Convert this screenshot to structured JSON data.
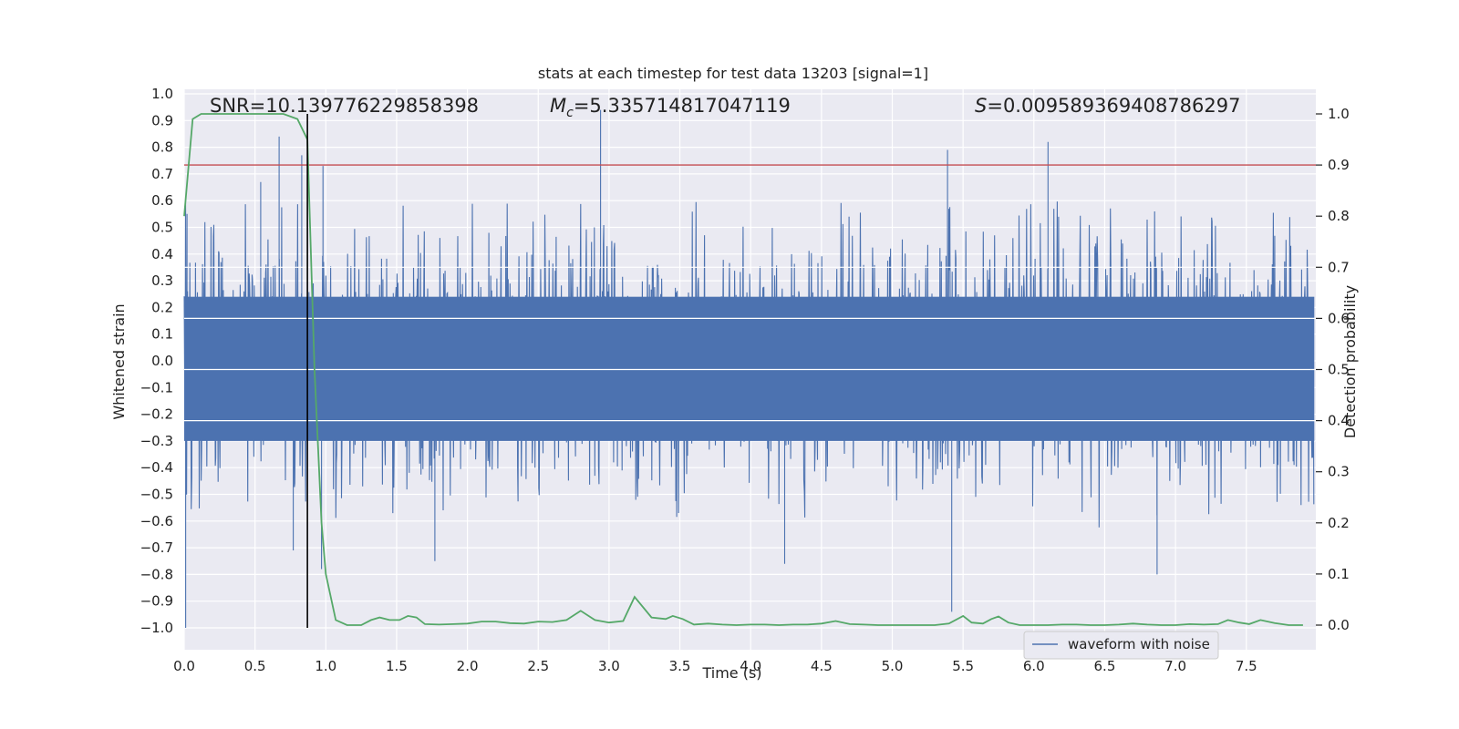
{
  "chart_data": {
    "type": "line",
    "title": "stats at each timestep for test data 13203 [signal=1]",
    "xlabel": "Time (s)",
    "ylabel": "Whitened strain",
    "y2label": "Detection probability",
    "xlim": [
      0.0,
      8.0
    ],
    "ylim": [
      -1.09,
      1.05
    ],
    "y2lim": [
      -0.05,
      1.03
    ],
    "x_ticks": [
      "0.0",
      "0.5",
      "1.0",
      "1.5",
      "2.0",
      "2.5",
      "3.0",
      "3.5",
      "4.0",
      "4.5",
      "5.0",
      "5.5",
      "6.0",
      "6.5",
      "7.0",
      "7.5"
    ],
    "x_tick_values": [
      0.0,
      0.5,
      1.0,
      1.5,
      2.0,
      2.5,
      3.0,
      3.5,
      4.0,
      4.5,
      5.0,
      5.5,
      6.0,
      6.5,
      7.0,
      7.5
    ],
    "y_ticks": [
      "1.0",
      "0.9",
      "0.8",
      "0.7",
      "0.6",
      "0.5",
      "0.4",
      "0.3",
      "0.2",
      "0.1",
      "0.0",
      "−0.1",
      "−0.2",
      "−0.3",
      "−0.4",
      "−0.5",
      "−0.6",
      "−0.7",
      "−0.8",
      "−0.9",
      "−1.0"
    ],
    "y_tick_values": [
      1.0,
      0.9,
      0.8,
      0.7,
      0.6,
      0.5,
      0.4,
      0.3,
      0.2,
      0.1,
      0.0,
      -0.1,
      -0.2,
      -0.3,
      -0.4,
      -0.5,
      -0.6,
      -0.7,
      -0.8,
      -0.9,
      -1.0
    ],
    "y2_ticks": [
      "1.0",
      "0.9",
      "0.8",
      "0.7",
      "0.6",
      "0.5",
      "0.4",
      "0.3",
      "0.2",
      "0.1",
      "0.0"
    ],
    "y2_tick_values": [
      1.0,
      0.9,
      0.8,
      0.7,
      0.6,
      0.5,
      0.4,
      0.3,
      0.2,
      0.1,
      0.0
    ],
    "stats": {
      "snr": "SNR=10.139776229858398",
      "mc_symbol": "M",
      "mc_sub": "c",
      "mc_value": "=5.335714817047119",
      "s_symbol": "S",
      "s_value": "=0.009589369408786297"
    },
    "threshold": 0.9,
    "marker_time": 0.87,
    "legend": {
      "label": "waveform with noise",
      "position": "lower-right"
    },
    "grid": true,
    "series": [
      {
        "name": "waveform with noise",
        "axis": "left",
        "style": "dense noise, core amplitude ~0.3, peaks to 0.94 near t=2.94 and troughs to -1.0 near t=0.01",
        "peaks": [
          {
            "x": 0.01,
            "y": -1.0
          },
          {
            "x": 0.02,
            "y": 0.55
          },
          {
            "x": 0.54,
            "y": 0.67
          },
          {
            "x": 0.67,
            "y": 0.84
          },
          {
            "x": 0.77,
            "y": -0.71
          },
          {
            "x": 0.83,
            "y": 0.77
          },
          {
            "x": 0.98,
            "y": 0.73
          },
          {
            "x": 0.97,
            "y": -0.78
          },
          {
            "x": 1.77,
            "y": -0.75
          },
          {
            "x": 2.94,
            "y": 0.94
          },
          {
            "x": 4.24,
            "y": -0.76
          },
          {
            "x": 5.39,
            "y": 0.79
          },
          {
            "x": 5.42,
            "y": -0.94
          },
          {
            "x": 6.1,
            "y": 0.82
          },
          {
            "x": 6.87,
            "y": -0.8
          }
        ]
      },
      {
        "name": "detection probability",
        "axis": "right",
        "x": [
          0.0,
          0.06,
          0.12,
          0.2,
          0.3,
          0.4,
          0.5,
          0.6,
          0.7,
          0.8,
          0.87,
          0.92,
          0.97,
          1.0,
          1.07,
          1.15,
          1.25,
          1.32,
          1.38,
          1.45,
          1.52,
          1.58,
          1.64,
          1.7,
          1.8,
          1.9,
          2.0,
          2.1,
          2.2,
          2.3,
          2.4,
          2.5,
          2.6,
          2.7,
          2.8,
          2.9,
          3.0,
          3.1,
          3.18,
          3.3,
          3.4,
          3.45,
          3.52,
          3.6,
          3.7,
          3.8,
          3.9,
          4.0,
          4.1,
          4.2,
          4.3,
          4.4,
          4.5,
          4.6,
          4.7,
          4.8,
          4.9,
          5.0,
          5.1,
          5.2,
          5.3,
          5.4,
          5.5,
          5.56,
          5.64,
          5.7,
          5.75,
          5.82,
          5.9,
          6.0,
          6.1,
          6.2,
          6.3,
          6.4,
          6.5,
          6.6,
          6.7,
          6.8,
          6.9,
          7.0,
          7.1,
          7.2,
          7.3,
          7.37,
          7.45,
          7.52,
          7.6,
          7.7,
          7.8,
          7.9
        ],
        "y": [
          0.8,
          0.99,
          1.0,
          1.0,
          1.0,
          1.0,
          1.0,
          1.0,
          1.0,
          0.99,
          0.95,
          0.5,
          0.2,
          0.1,
          0.01,
          0.0,
          0.0,
          0.01,
          0.015,
          0.01,
          0.01,
          0.018,
          0.015,
          0.002,
          0.001,
          0.002,
          0.003,
          0.007,
          0.007,
          0.004,
          0.003,
          0.007,
          0.006,
          0.01,
          0.028,
          0.01,
          0.005,
          0.008,
          0.055,
          0.015,
          0.012,
          0.018,
          0.012,
          0.001,
          0.003,
          0.001,
          0.0,
          0.001,
          0.001,
          0.0,
          0.001,
          0.001,
          0.003,
          0.008,
          0.002,
          0.001,
          0.0,
          0.0,
          0.0,
          0.0,
          0.0,
          0.003,
          0.018,
          0.005,
          0.003,
          0.012,
          0.017,
          0.005,
          0.0,
          0.0,
          0.0,
          0.001,
          0.001,
          0.0,
          0.0,
          0.001,
          0.003,
          0.001,
          0.0,
          0.0,
          0.002,
          0.001,
          0.002,
          0.01,
          0.005,
          0.002,
          0.01,
          0.004,
          0.0,
          0.0
        ]
      }
    ],
    "colors": {
      "waveform": "#4c72b0",
      "probability": "#55a868",
      "threshold": "#c44e52",
      "marker": "#000000",
      "plot_bg": "#eaeaf2",
      "grid": "#ffffff"
    }
  }
}
